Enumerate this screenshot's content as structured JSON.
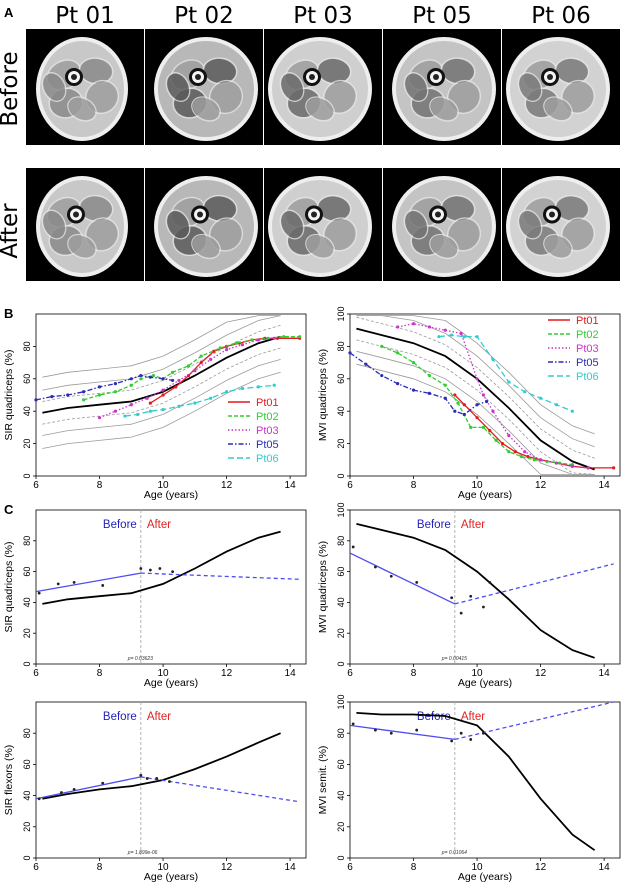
{
  "figure": {
    "panelA": "A",
    "panelB": "B",
    "panelC": "C",
    "patients": [
      "Pt 01",
      "Pt 02",
      "Pt 03",
      "Pt 05",
      "Pt 06"
    ],
    "rows": [
      "Before",
      "After"
    ]
  },
  "colors": {
    "Pt01": "#e41a1c",
    "Pt02": "#33cc33",
    "Pt03": "#cc33cc",
    "Pt05": "#2b2bb8",
    "Pt06": "#33cccc",
    "fit": "#4d4df2",
    "before_text": "#2222bb",
    "after_text": "#dd2222"
  },
  "chart_data": [
    {
      "id": "B_left",
      "type": "line",
      "ylabel": "SIR quadriceps (%)",
      "xlabel": "Age (years)",
      "xlim": [
        6,
        14.5
      ],
      "ylim": [
        0,
        100
      ],
      "xticks": [
        6,
        8,
        10,
        12,
        14
      ],
      "yticks": [
        0,
        20,
        40,
        60,
        80
      ],
      "legend": [
        "Pt01",
        "Pt02",
        "Pt03",
        "Pt05",
        "Pt06"
      ],
      "mean": {
        "x": [
          6.2,
          7,
          8,
          9,
          10,
          11,
          12,
          13,
          13.7
        ],
        "y": [
          39,
          42,
          44,
          46,
          52,
          62,
          73,
          82,
          86
        ]
      },
      "series": [
        {
          "name": "Pt01",
          "x": [
            9.6,
            10,
            10.4,
            10.8,
            11.2,
            11.6,
            12,
            12.4,
            12.8,
            13.2,
            13.6,
            14.3
          ],
          "y": [
            45,
            50,
            55,
            62,
            70,
            77,
            80,
            82,
            84,
            85,
            85,
            85
          ]
        },
        {
          "name": "Pt02",
          "x": [
            7.5,
            8,
            8.5,
            9,
            9.3,
            9.7,
            10,
            10.3,
            10.8,
            11.2,
            11.8,
            12.3,
            12.8,
            13.3,
            13.8,
            14.3
          ],
          "y": [
            47,
            50,
            52,
            56,
            60,
            62,
            60,
            64,
            68,
            74,
            79,
            82,
            84,
            85,
            86,
            86
          ]
        },
        {
          "name": "Pt03",
          "x": [
            8,
            8.5,
            9,
            9.5,
            10,
            10.5,
            11,
            11.5,
            12,
            12.5,
            13,
            13.5
          ],
          "y": [
            36,
            40,
            44,
            48,
            53,
            59,
            65,
            72,
            78,
            81,
            84,
            85
          ]
        },
        {
          "name": "Pt05",
          "x": [
            6,
            6.5,
            7,
            7.5,
            8,
            8.5,
            9,
            9.3,
            9.6,
            10,
            10.3
          ],
          "y": [
            47,
            49,
            50,
            52,
            55,
            57,
            60,
            62,
            61,
            60,
            59
          ]
        },
        {
          "name": "Pt06",
          "x": [
            8.8,
            9.2,
            9.6,
            10,
            10.5,
            11,
            11.5,
            12,
            12.5,
            13,
            13.5
          ],
          "y": [
            37,
            38,
            40,
            41,
            43,
            45,
            48,
            52,
            54,
            55,
            56
          ]
        }
      ]
    },
    {
      "id": "B_right",
      "type": "line",
      "ylabel": "MVI quadriceps (%)",
      "xlabel": "Age (years)",
      "xlim": [
        6,
        14.5
      ],
      "ylim": [
        0,
        100
      ],
      "xticks": [
        6,
        8,
        10,
        12,
        14
      ],
      "yticks": [
        0,
        20,
        40,
        60,
        80,
        100
      ],
      "legend": [
        "Pt01",
        "Pt02",
        "Pt03",
        "Pt05",
        "Pt06"
      ],
      "mean": {
        "x": [
          6.2,
          7,
          8,
          9,
          10,
          11,
          12,
          13,
          13.7
        ],
        "y": [
          91,
          87,
          82,
          74,
          60,
          42,
          22,
          9,
          4
        ]
      },
      "series": [
        {
          "name": "Pt01",
          "x": [
            9.3,
            9.6,
            10,
            10.4,
            10.8,
            11.2,
            11.6,
            12,
            12.5,
            13,
            13.5,
            14.3
          ],
          "y": [
            50,
            44,
            36,
            28,
            20,
            15,
            12,
            10,
            8,
            6,
            5,
            5
          ]
        },
        {
          "name": "Pt02",
          "x": [
            7,
            7.5,
            8,
            8.5,
            9,
            9.4,
            9.8,
            10.2,
            10.6,
            11,
            11.4,
            11.8,
            12.2,
            12.6,
            13
          ],
          "y": [
            80,
            76,
            70,
            62,
            56,
            45,
            30,
            30,
            22,
            15,
            12,
            10,
            9,
            8,
            7
          ]
        },
        {
          "name": "Pt03",
          "x": [
            7.5,
            8,
            8.5,
            9,
            9.5,
            10,
            10.2,
            10.5,
            11,
            11.5,
            12,
            12.5,
            13,
            13.5
          ],
          "y": [
            92,
            94,
            92,
            90,
            88,
            60,
            50,
            40,
            25,
            15,
            10,
            8,
            6,
            5
          ]
        },
        {
          "name": "Pt05",
          "x": [
            6,
            6.5,
            7,
            7.5,
            8,
            8.5,
            9,
            9.3,
            9.6,
            10,
            10.3
          ],
          "y": [
            76,
            69,
            62,
            57,
            53,
            51,
            48,
            40,
            38,
            44,
            46
          ]
        },
        {
          "name": "Pt06",
          "x": [
            8.8,
            9.2,
            9.6,
            10,
            10.5,
            11,
            11.5,
            12,
            12.5,
            13
          ],
          "y": [
            86,
            87,
            86,
            86,
            72,
            58,
            52,
            48,
            44,
            40
          ]
        }
      ]
    },
    {
      "id": "C1",
      "type": "line",
      "ylabel": "SIR quadriceps (%)",
      "xlabel": "Age (years)",
      "xlim": [
        6,
        14.5
      ],
      "ylim": [
        0,
        100
      ],
      "xticks": [
        6,
        8,
        10,
        12,
        14
      ],
      "yticks": [
        0,
        20,
        40,
        60,
        80
      ],
      "treatment_age": 9.3,
      "before": "Before",
      "after": "After",
      "pvalue": "p= 0.03623",
      "mean": {
        "x": [
          6.2,
          7,
          8,
          9,
          10,
          11,
          12,
          13,
          13.7
        ],
        "y": [
          39,
          42,
          44,
          46,
          52,
          62,
          73,
          82,
          86
        ]
      },
      "fit_before": {
        "x": [
          6,
          9.3
        ],
        "y": [
          47,
          59
        ]
      },
      "fit_after": {
        "x": [
          9.3,
          14.3
        ],
        "y": [
          59,
          55
        ]
      },
      "points": {
        "x": [
          6.1,
          6.7,
          7.2,
          8.1,
          9.3,
          9.6,
          9.9,
          10.3
        ],
        "y": [
          46,
          52,
          53,
          51,
          62,
          61,
          62,
          60
        ]
      }
    },
    {
      "id": "C2",
      "type": "line",
      "ylabel": "MVI quadriceps (%)",
      "xlabel": "Age (years)",
      "xlim": [
        6,
        14.5
      ],
      "ylim": [
        0,
        100
      ],
      "xticks": [
        6,
        8,
        10,
        12,
        14
      ],
      "yticks": [
        0,
        20,
        40,
        60,
        80,
        100
      ],
      "treatment_age": 9.3,
      "before": "Before",
      "after": "After",
      "pvalue": "p= 0.00415",
      "mean": {
        "x": [
          6.2,
          7,
          8,
          9,
          10,
          11,
          12,
          13,
          13.7
        ],
        "y": [
          91,
          87,
          82,
          74,
          60,
          42,
          22,
          9,
          4
        ]
      },
      "fit_before": {
        "x": [
          6,
          9.3
        ],
        "y": [
          72,
          39
        ]
      },
      "fit_after": {
        "x": [
          9.3,
          14.3
        ],
        "y": [
          39,
          65
        ]
      },
      "points": {
        "x": [
          6.1,
          6.8,
          7.3,
          8.1,
          9.2,
          9.5,
          9.8,
          10.2,
          10.4
        ],
        "y": [
          76,
          63,
          57,
          53,
          43,
          33,
          44,
          37,
          53
        ]
      }
    },
    {
      "id": "C3",
      "type": "line",
      "ylabel": "SIR flexors (%)",
      "xlabel": "Age (years)",
      "xlim": [
        6,
        14.5
      ],
      "ylim": [
        0,
        100
      ],
      "xticks": [
        6,
        8,
        10,
        12,
        14
      ],
      "yticks": [
        0,
        20,
        40,
        60,
        80
      ],
      "treatment_age": 9.3,
      "before": "Before",
      "after": "After",
      "pvalue": "p= 1.899e-06",
      "mean": {
        "x": [
          6.2,
          7,
          8,
          9,
          10,
          11,
          12,
          13,
          13.7
        ],
        "y": [
          38,
          41,
          44,
          46,
          50,
          57,
          65,
          74,
          80
        ]
      },
      "fit_before": {
        "x": [
          6,
          9.3
        ],
        "y": [
          38,
          52
        ]
      },
      "fit_after": {
        "x": [
          9.3,
          14.3
        ],
        "y": [
          52,
          36
        ]
      },
      "points": {
        "x": [
          6.1,
          6.8,
          7.2,
          8.1,
          9.3,
          9.5,
          9.8,
          10.2
        ],
        "y": [
          38,
          42,
          44,
          48,
          53,
          51,
          51,
          49
        ]
      }
    },
    {
      "id": "C4",
      "type": "line",
      "ylabel": "MVI semit. (%)",
      "xlabel": "Age (years)",
      "xlim": [
        6,
        14.5
      ],
      "ylim": [
        0,
        100
      ],
      "xticks": [
        6,
        8,
        10,
        12,
        14
      ],
      "yticks": [
        0,
        20,
        40,
        60,
        80,
        100
      ],
      "treatment_age": 9.3,
      "before": "Before",
      "after": "After",
      "pvalue": "p= 0.01064",
      "mean": {
        "x": [
          6.2,
          7,
          8,
          9,
          10,
          11,
          12,
          13,
          13.7
        ],
        "y": [
          93,
          92,
          92,
          91,
          85,
          65,
          38,
          15,
          5
        ]
      },
      "fit_before": {
        "x": [
          6,
          9.3
        ],
        "y": [
          85,
          76
        ]
      },
      "fit_after": {
        "x": [
          9.3,
          14.3
        ],
        "y": [
          76,
          100
        ]
      },
      "points": {
        "x": [
          6.1,
          6.8,
          7.3,
          8.1,
          9.2,
          9.5,
          9.8,
          10.2
        ],
        "y": [
          86,
          82,
          80,
          82,
          75,
          80,
          76,
          80
        ]
      }
    }
  ]
}
